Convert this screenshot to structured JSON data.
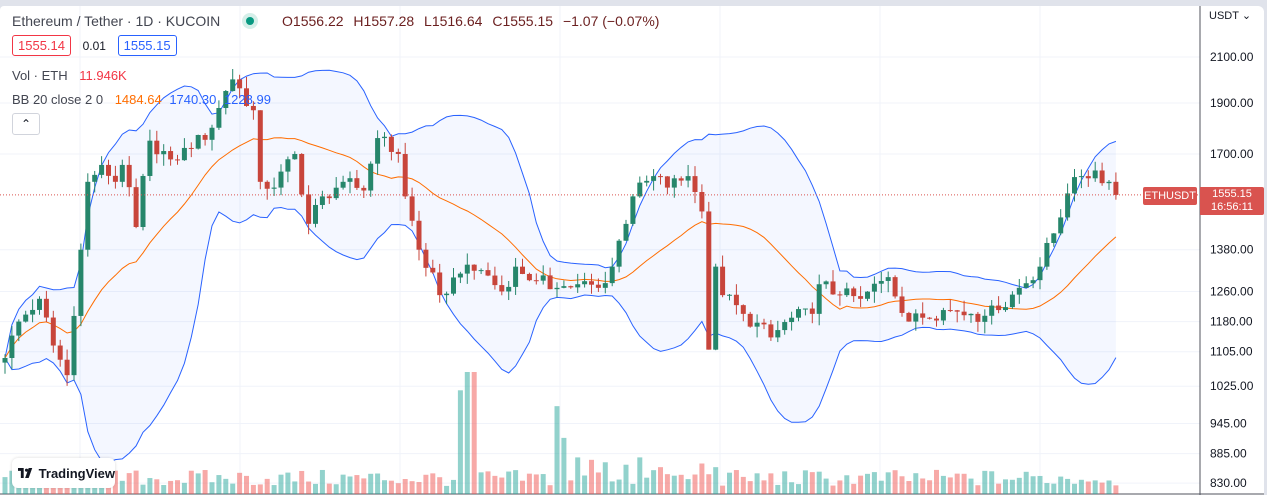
{
  "header": {
    "symbol_title": "Ethereum / Tether · 1D · KUCOIN",
    "ohlc": {
      "open": "O1556.22",
      "high": "H1557.28",
      "low": "L1516.64",
      "close": "C1555.15",
      "change": "−1.07 (−0.07%)"
    },
    "bid": "1555.14",
    "spread": "0.01",
    "ask": "1555.15"
  },
  "indicators": {
    "volume": {
      "label": "Vol · ETH",
      "value": "11.946K"
    },
    "bb": {
      "label": "BB 20 close 2 0",
      "basis": "1484.64",
      "upper": "1740.30",
      "lower": "1228.99"
    }
  },
  "price_axis": {
    "currency": "USDT",
    "ticks": [
      "2100.00",
      "1900.00",
      "1700.00",
      "1380.00",
      "1260.00",
      "1180.00",
      "1105.00",
      "1025.00",
      "945.00",
      "885.00",
      "830.00"
    ],
    "tick_values": [
      2100,
      1900,
      1700,
      1380,
      1260,
      1180,
      1105,
      1025,
      945,
      885,
      830
    ]
  },
  "last_price": {
    "symbol": "ETHUSDT",
    "price": "1555.15",
    "countdown": "16:56:11",
    "value": 1555.15
  },
  "branding": {
    "logo_text": "TradingView"
  },
  "colors": {
    "up": "#26866b",
    "down": "#c8453b",
    "basis": "#ff6d00",
    "band": "#2962ff",
    "last": "#d9534f"
  },
  "chart_data": {
    "type": "candlestick",
    "title": "Ethereum / Tether · 1D · KUCOIN",
    "scale": "log",
    "ylim": [
      820,
      2150
    ],
    "days": 162,
    "close_waypoints": [
      [
        0,
        1090
      ],
      [
        2,
        1180
      ],
      [
        5,
        1240
      ],
      [
        7,
        1120
      ],
      [
        9,
        1050
      ],
      [
        11,
        1380
      ],
      [
        12,
        1600
      ],
      [
        14,
        1660
      ],
      [
        16,
        1600
      ],
      [
        17,
        1660
      ],
      [
        19,
        1450
      ],
      [
        21,
        1750
      ],
      [
        24,
        1680
      ],
      [
        27,
        1720
      ],
      [
        30,
        1800
      ],
      [
        32,
        1950
      ],
      [
        33,
        2000
      ],
      [
        36,
        1870
      ],
      [
        37,
        1600
      ],
      [
        39,
        1580
      ],
      [
        42,
        1700
      ],
      [
        44,
        1460
      ],
      [
        46,
        1550
      ],
      [
        49,
        1600
      ],
      [
        52,
        1570
      ],
      [
        54,
        1760
      ],
      [
        57,
        1700
      ],
      [
        58,
        1550
      ],
      [
        60,
        1380
      ],
      [
        63,
        1250
      ],
      [
        66,
        1310
      ],
      [
        69,
        1320
      ],
      [
        72,
        1260
      ],
      [
        74,
        1330
      ],
      [
        77,
        1290
      ],
      [
        80,
        1270
      ],
      [
        83,
        1280
      ],
      [
        86,
        1270
      ],
      [
        88,
        1330
      ],
      [
        91,
        1550
      ],
      [
        94,
        1620
      ],
      [
        96,
        1580
      ],
      [
        99,
        1620
      ],
      [
        101,
        1500
      ],
      [
        102,
        1110
      ],
      [
        103,
        1330
      ],
      [
        104,
        1250
      ],
      [
        107,
        1200
      ],
      [
        111,
        1140
      ],
      [
        114,
        1190
      ],
      [
        117,
        1200
      ],
      [
        118,
        1280
      ],
      [
        121,
        1250
      ],
      [
        124,
        1240
      ],
      [
        128,
        1300
      ],
      [
        131,
        1180
      ],
      [
        133,
        1190
      ],
      [
        136,
        1210
      ],
      [
        140,
        1200
      ],
      [
        142,
        1195
      ],
      [
        144,
        1210
      ],
      [
        147,
        1270
      ],
      [
        150,
        1330
      ],
      [
        152,
        1430
      ],
      [
        154,
        1560
      ],
      [
        156,
        1620
      ],
      [
        158,
        1640
      ],
      [
        160,
        1600
      ],
      [
        161,
        1555
      ]
    ],
    "volume_relative_spikes": [
      [
        66,
        85
      ],
      [
        67,
        100
      ],
      [
        68,
        100
      ],
      [
        80,
        72
      ],
      [
        81,
        46
      ],
      [
        83,
        30
      ],
      [
        85,
        28
      ],
      [
        87,
        26
      ],
      [
        90,
        24
      ],
      [
        92,
        30
      ],
      [
        95,
        22
      ],
      [
        101,
        25
      ],
      [
        103,
        22
      ]
    ],
    "bollinger": {
      "period": 20,
      "stddev": 2
    }
  }
}
